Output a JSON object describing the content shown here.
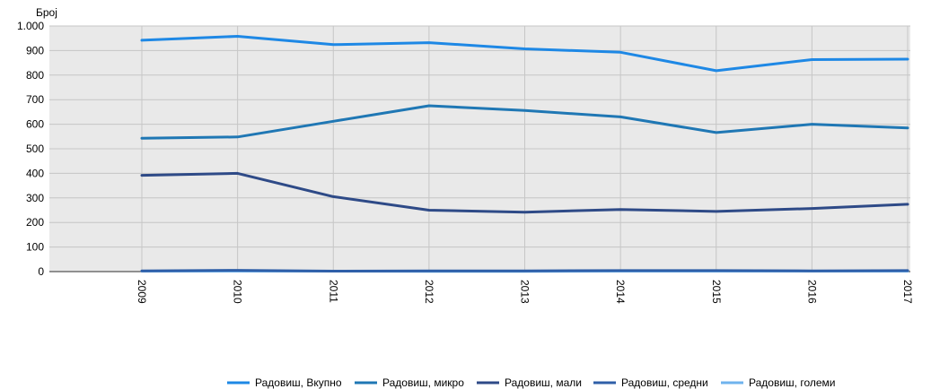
{
  "chart_data": {
    "type": "line",
    "ylabel": "Број",
    "ylim": [
      0,
      1000
    ],
    "yticks": [
      0,
      100,
      200,
      300,
      400,
      500,
      600,
      700,
      800,
      900,
      1000
    ],
    "ytick_labels": [
      "0",
      "100",
      "200",
      "300",
      "400",
      "500",
      "600",
      "700",
      "800",
      "900",
      "1.000"
    ],
    "x": [
      "2009",
      "2010",
      "2011",
      "2012",
      "2013",
      "2014",
      "2015",
      "2016",
      "2017"
    ],
    "grid": true,
    "legend_position": "bottom",
    "series": [
      {
        "name": "Радовиш, Вкупно",
        "color": "#1e88e5",
        "values": [
          942,
          958,
          924,
          932,
          907,
          893,
          818,
          863,
          865
        ]
      },
      {
        "name": "Радовиш, микро",
        "color": "#1f77b4",
        "values": [
          543,
          548,
          612,
          675,
          656,
          630,
          566,
          600,
          585
        ]
      },
      {
        "name": "Радовиш, мали",
        "color": "#2e4a87",
        "values": [
          392,
          400,
          305,
          250,
          242,
          253,
          245,
          257,
          274
        ]
      },
      {
        "name": "Радовиш, средни",
        "color": "#2f5fa8",
        "values": [
          3,
          5,
          2,
          3,
          3,
          4,
          4,
          3,
          4
        ]
      },
      {
        "name": "Радовиш, големи",
        "color": "#6fb3ee",
        "values": [
          2,
          2,
          2,
          1,
          1,
          2,
          2,
          2,
          2
        ]
      }
    ]
  }
}
